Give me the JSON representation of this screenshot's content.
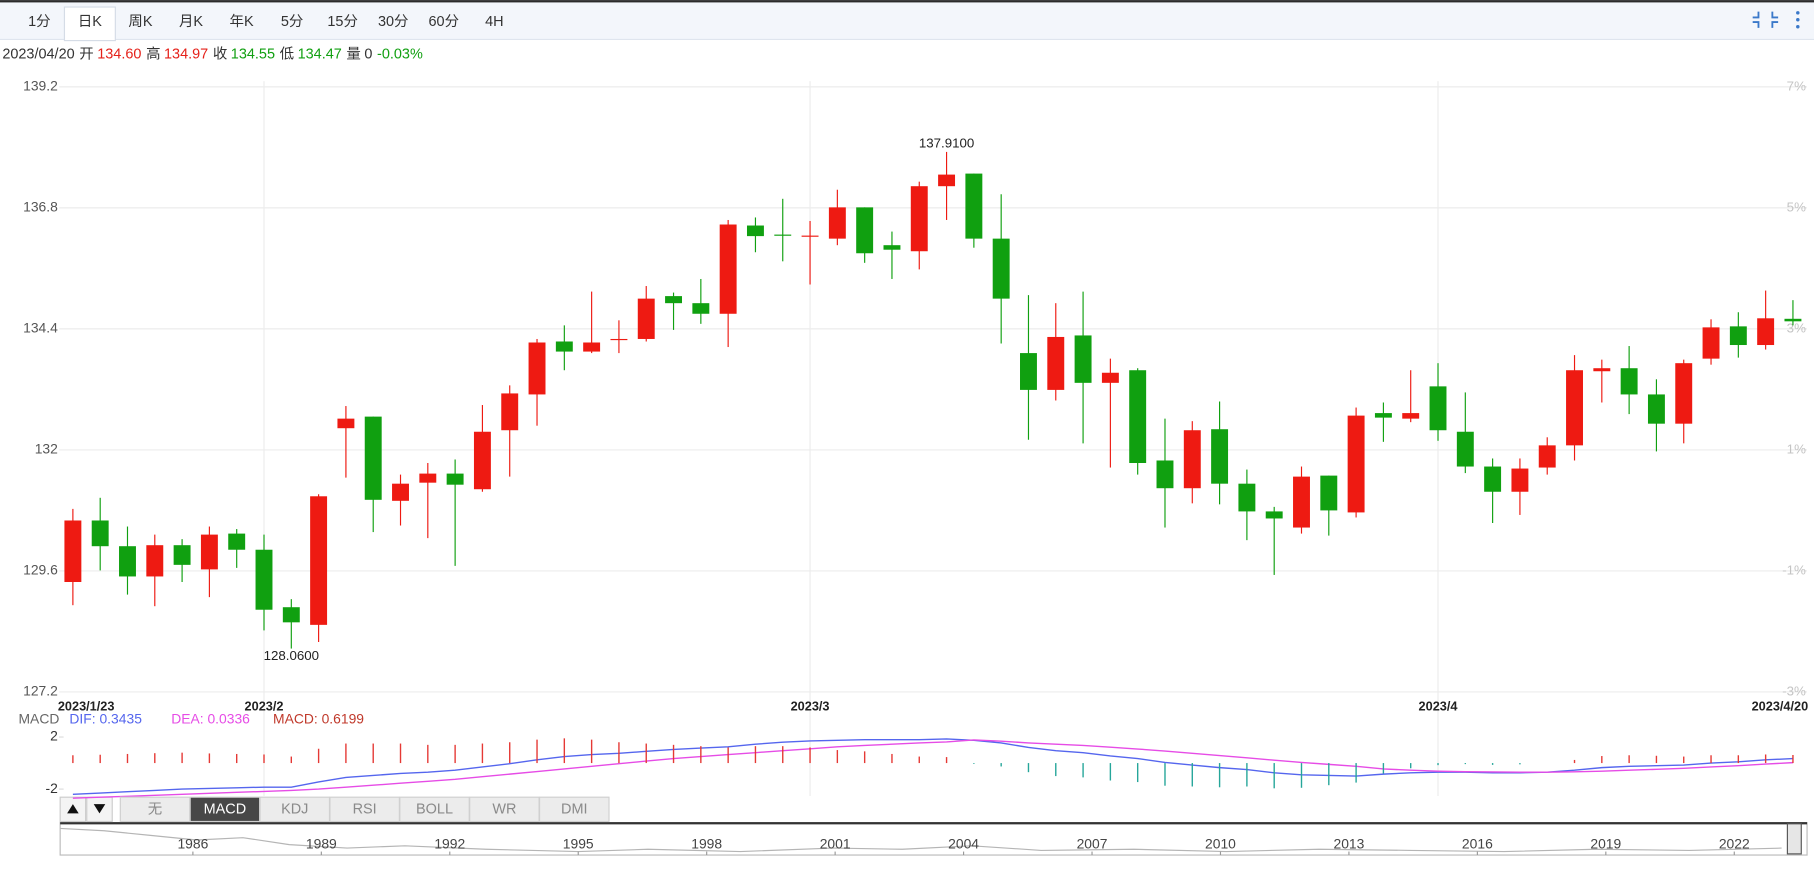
{
  "toolbar": {
    "tabs": [
      "1分",
      "日K",
      "周K",
      "月K",
      "年K",
      "5分",
      "15分",
      "30分",
      "60分",
      "4H"
    ],
    "active": 1
  },
  "quote": {
    "date": "2023/04/20",
    "fields": [
      {
        "name": "开",
        "text": "134.60",
        "color": "#e5211a"
      },
      {
        "name": "高",
        "text": "134.97",
        "color": "#e5211a"
      },
      {
        "name": "收",
        "text": "134.55",
        "color": "#12a012"
      },
      {
        "name": "低",
        "text": "134.47",
        "color": "#12a012"
      },
      {
        "name": "量",
        "text": "0",
        "color": "#333333"
      },
      {
        "text": "-0.03%",
        "color": "#12a012"
      }
    ]
  },
  "chart_data": [
    {
      "type": "candlestick",
      "categories": [
        "2023/1/23",
        null,
        null,
        null,
        null,
        null,
        null,
        "2023/2",
        null,
        null,
        null,
        null,
        null,
        null,
        null,
        null,
        null,
        null,
        null,
        null,
        null,
        null,
        null,
        null,
        null,
        null,
        null,
        "2023/3",
        null,
        null,
        null,
        null,
        null,
        null,
        null,
        null,
        null,
        null,
        null,
        null,
        null,
        null,
        null,
        null,
        null,
        null,
        null,
        null,
        null,
        null,
        "2023/4",
        null,
        null,
        null,
        null,
        null,
        null,
        null,
        null,
        null,
        null,
        null,
        null,
        "2023/4/20"
      ],
      "open": [
        129.38,
        130.6,
        130.09,
        129.49,
        130.11,
        129.63,
        130.34,
        130.02,
        128.88,
        128.53,
        132.43,
        132.66,
        130.99,
        131.35,
        131.53,
        131.22,
        132.39,
        133.1,
        134.15,
        133.95,
        134.19,
        134.2,
        135.05,
        134.91,
        134.7,
        136.45,
        136.27,
        136.23,
        136.19,
        136.81,
        136.06,
        135.94,
        137.23,
        137.48,
        136.19,
        133.92,
        133.19,
        134.27,
        133.33,
        133.58,
        131.79,
        131.24,
        132.41,
        131.33,
        130.78,
        130.46,
        131.49,
        130.76,
        132.73,
        132.62,
        133.26,
        132.36,
        131.67,
        131.17,
        131.65,
        132.09,
        133.56,
        133.62,
        133.1,
        132.52,
        133.81,
        134.45,
        134.08,
        134.6
      ],
      "high": [
        130.83,
        131.05,
        130.48,
        130.32,
        130.23,
        130.48,
        130.43,
        130.32,
        129.04,
        131.12,
        132.87,
        132.66,
        131.51,
        131.74,
        131.81,
        132.89,
        133.28,
        134.2,
        134.47,
        135.14,
        134.57,
        135.25,
        135.12,
        135.39,
        136.56,
        136.61,
        136.98,
        136.54,
        137.16,
        136.81,
        136.33,
        137.32,
        137.91,
        137.48,
        137.07,
        135.07,
        134.91,
        135.14,
        133.81,
        133.62,
        132.62,
        132.57,
        132.96,
        131.61,
        130.87,
        131.67,
        131.49,
        132.84,
        132.94,
        133.58,
        133.72,
        133.14,
        131.83,
        131.83,
        132.25,
        133.88,
        133.79,
        134.06,
        133.4,
        133.79,
        134.59,
        134.73,
        135.16,
        134.97
      ],
      "low": [
        128.92,
        129.61,
        129.13,
        128.9,
        129.38,
        129.08,
        129.66,
        128.42,
        128.06,
        128.19,
        131.45,
        130.37,
        130.5,
        130.25,
        129.7,
        131.17,
        131.47,
        132.48,
        133.58,
        133.92,
        133.92,
        134.15,
        134.38,
        134.5,
        134.04,
        135.92,
        135.74,
        135.28,
        136.06,
        135.71,
        135.39,
        135.58,
        136.56,
        136.01,
        134.11,
        132.2,
        132.98,
        132.13,
        131.65,
        131.51,
        130.46,
        130.94,
        130.92,
        130.21,
        129.52,
        130.34,
        130.3,
        130.66,
        132.16,
        132.55,
        132.18,
        131.54,
        130.55,
        130.71,
        131.51,
        131.79,
        132.94,
        132.71,
        131.97,
        132.13,
        133.69,
        133.83,
        133.99,
        134.47
      ],
      "close": [
        130.6,
        130.09,
        129.49,
        130.11,
        129.72,
        130.32,
        130.02,
        128.83,
        128.58,
        131.08,
        132.62,
        131.01,
        131.33,
        131.53,
        131.31,
        132.36,
        133.12,
        134.13,
        133.95,
        134.13,
        134.2,
        135.0,
        134.91,
        134.7,
        136.47,
        136.24,
        136.26,
        136.25,
        136.81,
        135.9,
        135.97,
        137.23,
        137.46,
        136.19,
        135.0,
        133.19,
        134.24,
        133.33,
        133.53,
        131.74,
        131.24,
        132.39,
        131.33,
        130.78,
        130.64,
        131.47,
        130.8,
        132.68,
        132.64,
        132.73,
        132.39,
        131.67,
        131.17,
        131.63,
        132.09,
        133.58,
        133.62,
        133.1,
        132.52,
        133.72,
        134.43,
        134.08,
        134.61,
        134.55
      ],
      "up_color": "#ee1a12",
      "down_color": "#10a010",
      "ylim": [
        127.2,
        139.2
      ],
      "yticks": [
        127.2,
        129.6,
        132,
        134.4,
        136.8,
        139.2
      ],
      "y2lim": [
        -3,
        7
      ],
      "y2ticks": [
        {
          "value": -3,
          "label": "-3%"
        },
        {
          "value": -1,
          "label": "-1%"
        },
        {
          "value": 1,
          "label": "1%"
        },
        {
          "value": 3,
          "label": "3%"
        },
        {
          "value": 5,
          "label": "5%"
        },
        {
          "value": 7,
          "label": "7%"
        }
      ],
      "grid": true,
      "extreme_labels": {
        "high": {
          "value": 137.91,
          "label": "137.9100"
        },
        "low": {
          "value": 128.06,
          "label": "128.0600"
        }
      }
    },
    {
      "type": "macd",
      "label": "MACD",
      "series": [
        {
          "name": "DIF: 0.3435",
          "color": "#5566ee",
          "values": [
            -2.4,
            -2.3,
            -2.2,
            -2.1,
            -2.0,
            -1.95,
            -1.9,
            -1.85,
            -1.85,
            -1.45,
            -1.1,
            -0.95,
            -0.8,
            -0.7,
            -0.55,
            -0.3,
            -0.05,
            0.25,
            0.5,
            0.65,
            0.75,
            0.9,
            1.05,
            1.15,
            1.25,
            1.45,
            1.6,
            1.7,
            1.75,
            1.8,
            1.8,
            1.8,
            1.85,
            1.75,
            1.55,
            1.2,
            0.95,
            0.8,
            0.55,
            0.35,
            0.05,
            -0.15,
            -0.35,
            -0.5,
            -0.75,
            -0.9,
            -0.95,
            -1.0,
            -0.85,
            -0.75,
            -0.7,
            -0.7,
            -0.75,
            -0.75,
            -0.7,
            -0.55,
            -0.35,
            -0.25,
            -0.2,
            -0.15,
            0.0,
            0.1,
            0.25,
            0.3435
          ]
        },
        {
          "name": "DEA: 0.0336",
          "color": "#e64ce6",
          "values": [
            -2.7,
            -2.62,
            -2.55,
            -2.48,
            -2.4,
            -2.32,
            -2.25,
            -2.18,
            -2.1,
            -2.0,
            -1.85,
            -1.7,
            -1.55,
            -1.4,
            -1.25,
            -1.05,
            -0.85,
            -0.65,
            -0.45,
            -0.25,
            -0.05,
            0.15,
            0.35,
            0.5,
            0.65,
            0.8,
            0.95,
            1.1,
            1.25,
            1.35,
            1.45,
            1.55,
            1.62,
            1.78,
            1.68,
            1.55,
            1.45,
            1.35,
            1.22,
            1.08,
            0.92,
            0.75,
            0.58,
            0.4,
            0.22,
            0.05,
            -0.1,
            -0.25,
            -0.45,
            -0.55,
            -0.62,
            -0.66,
            -0.68,
            -0.7,
            -0.7,
            -0.67,
            -0.62,
            -0.55,
            -0.48,
            -0.4,
            -0.3,
            -0.2,
            -0.08,
            0.0336
          ]
        },
        {
          "name": "MACD: 0.6199",
          "color": "#c0392b",
          "up_color": "#e53935",
          "down_color": "#26a69a",
          "values": [
            0.6,
            0.64,
            0.7,
            0.76,
            0.8,
            0.74,
            0.7,
            0.66,
            0.5,
            1.1,
            1.5,
            1.5,
            1.5,
            1.4,
            1.4,
            1.5,
            1.6,
            1.8,
            1.9,
            1.8,
            1.6,
            1.5,
            1.4,
            1.3,
            1.2,
            1.3,
            1.3,
            1.2,
            1.0,
            0.9,
            0.7,
            0.5,
            0.46,
            -0.06,
            -0.26,
            -0.7,
            -1.0,
            -1.1,
            -1.34,
            -1.46,
            -1.74,
            -1.8,
            -1.86,
            -1.8,
            -1.94,
            -1.9,
            -1.7,
            -1.5,
            -0.8,
            -0.4,
            -0.16,
            -0.08,
            -0.14,
            -0.1,
            0.0,
            0.24,
            0.54,
            0.6,
            0.56,
            0.5,
            0.6,
            0.6,
            0.66,
            0.6199
          ]
        }
      ],
      "ylim": [
        -2.8,
        2.8
      ],
      "yticks": [
        2,
        -2
      ]
    }
  ],
  "indicators": {
    "tabs": [
      "无",
      "MACD",
      "KDJ",
      "RSI",
      "BOLL",
      "WR",
      "DMI"
    ],
    "active": 1
  },
  "navigator": {
    "xlim": [
      1982.9,
      2023.7
    ],
    "xticks": [
      1986,
      1989,
      1992,
      1995,
      1998,
      2001,
      2004,
      2007,
      2010,
      2013,
      2016,
      2019,
      2022
    ]
  }
}
